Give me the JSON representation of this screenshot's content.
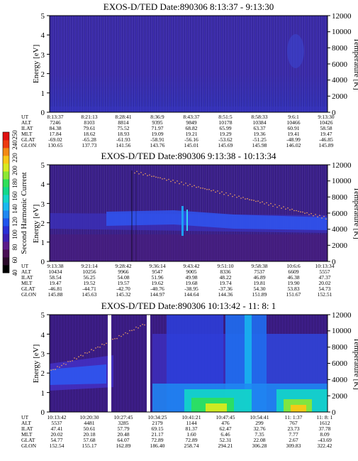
{
  "chart_data": {
    "type": "heatmap",
    "colorbar": {
      "label": "Second Harmonic Current",
      "ticks": [
        "40",
        "60",
        "80",
        "100",
        "120",
        "140",
        "160",
        "180",
        "200",
        "220",
        "240",
        "250"
      ],
      "colors": [
        "#000000",
        "#2b0a2a",
        "#4a0f55",
        "#5c1a8a",
        "#3b1fb3",
        "#2a2fd6",
        "#1f55ee",
        "#1e88f2",
        "#19b9f0",
        "#13d6c8",
        "#12d98a",
        "#2ee05a",
        "#8ce832",
        "#d7ea1f",
        "#f8c815",
        "#f48a12",
        "#ee3a10",
        "#e01010"
      ]
    },
    "panels": [
      {
        "title": "EXOS-D/TED   Date:890306  8:13:37 - 9:13:30",
        "ylabel": "Energy [eV]",
        "y2label": "Temperature [K]",
        "ylim": [
          0,
          5
        ],
        "y2lim": [
          0,
          12000
        ],
        "yticks": [
          "0",
          "1",
          "2",
          "3",
          "4",
          "5"
        ],
        "y2ticks": [
          "0",
          "2000",
          "4000",
          "6000",
          "8000",
          "10000",
          "12000"
        ],
        "ephemeris": [
          {
            "label": "UT",
            "values": [
              "8:13:37",
              "8:21:13",
              "8:28:41",
              "8:36:9",
              "8:43:37",
              "8:51:5",
              "8:58:33",
              "9:6:1",
              "9:13:30"
            ]
          },
          {
            "label": "ALT",
            "values": [
              "7246",
              "8103",
              "8814",
              "9395",
              "9849",
              "10178",
              "10384",
              "10466",
              "10426"
            ]
          },
          {
            "label": "ILAT",
            "values": [
              "84.38",
              "79.61",
              "75.52",
              "71.97",
              "68.82",
              "65.99",
              "63.37",
              "60.91",
              "58.58"
            ]
          },
          {
            "label": "MLT",
            "values": [
              "17.84",
              "18.62",
              "18.93",
              "19.09",
              "19.21",
              "19.29",
              "19.36",
              "19.41",
              "19.47"
            ]
          },
          {
            "label": "GLAT",
            "values": [
              "-69.02",
              "-65.28",
              "-61.93",
              "-58.91",
              "-56.16",
              "-53.62",
              "-51.25",
              "-48.99",
              "-46.85"
            ]
          },
          {
            "label": "GLON",
            "values": [
              "130.65",
              "137.73",
              "141.56",
              "143.76",
              "145.01",
              "145.69",
              "145.98",
              "146.02",
              "145.89"
            ]
          }
        ]
      },
      {
        "title": "EXOS-D/TED   Date:890306  9:13:38 - 10:13:34",
        "ylabel": "Energy [eV]",
        "y2label": "Temperature [K]",
        "ylim": [
          0,
          5
        ],
        "y2lim": [
          0,
          12000
        ],
        "yticks": [
          "0",
          "1",
          "2",
          "3",
          "4",
          "5"
        ],
        "y2ticks": [
          "0",
          "2000",
          "4000",
          "6000",
          "8000",
          "10000",
          "12000"
        ],
        "ephemeris": [
          {
            "label": "UT",
            "values": [
              "9:13:38",
              "9:21:14",
              "9:28:42",
              "9:36:14",
              "9:43:42",
              "9:51:10",
              "9:58:38",
              "10:6:6",
              "10:13:34"
            ]
          },
          {
            "label": "ALT",
            "values": [
              "10434",
              "10256",
              "9966",
              "9547",
              "9005",
              "8336",
              "7537",
              "6609",
              "5557"
            ]
          },
          {
            "label": "ILAT",
            "values": [
              "58.54",
              "56.25",
              "54.08",
              "51.96",
              "49.98",
              "48.22",
              "46.89",
              "46.38",
              "47.37"
            ]
          },
          {
            "label": "MLT",
            "values": [
              "19.47",
              "19.52",
              "19.57",
              "19.62",
              "19.68",
              "19.74",
              "19.81",
              "19.90",
              "20.02"
            ]
          },
          {
            "label": "GLAT",
            "values": [
              "-46.81",
              "-44.71",
              "-42.70",
              "-40.76",
              "-38.95",
              "-37.36",
              "54.30",
              "53.83",
              "54.73"
            ]
          },
          {
            "label": "GLON",
            "values": [
              "145.88",
              "145.63",
              "145.32",
              "144.97",
              "144.64",
              "144.36",
              "151.89",
              "151.67",
              "152.51"
            ]
          }
        ]
      },
      {
        "title": "EXOS-D/TED   Date:890306  10:13:42 - 11: 8: 1",
        "ylabel": "Energy [eV]",
        "y2label": "Temperature [K]",
        "ylim": [
          0,
          5
        ],
        "y2lim": [
          0,
          12000
        ],
        "yticks": [
          "0",
          "1",
          "2",
          "3",
          "4",
          "5"
        ],
        "y2ticks": [
          "0",
          "2000",
          "4000",
          "6000",
          "8000",
          "10000",
          "12000"
        ],
        "ephemeris": [
          {
            "label": "UT",
            "values": [
              "10:13:42",
              "10:20:30",
              "10:27:45",
              "10:34:25",
              "10:41:21",
              "10:47:45",
              "10:54:41",
              "11: 1:37",
              "11: 8: 1"
            ]
          },
          {
            "label": "ALT",
            "values": [
              "5537",
              "4481",
              "3285",
              "2179",
              "1144",
              "476",
              "299",
              "767",
              "1612"
            ]
          },
          {
            "label": "ILAT",
            "values": [
              "47.41",
              "50.61",
              "57.79",
              "69.15",
              "81.37",
              "62.47",
              "32.76",
              "23.73",
              "37.78"
            ]
          },
          {
            "label": "MLT",
            "values": [
              "20.02",
              "20.18",
              "20.48",
              "21.17",
              "1.60",
              "6.46",
              "7.35",
              "7.77",
              "8.09"
            ]
          },
          {
            "label": "GLAT",
            "values": [
              "54.77",
              "57.68",
              "64.07",
              "72.89",
              "72.89",
              "52.31",
              "22.08",
              "2.67",
              "-43.69"
            ]
          },
          {
            "label": "GLON",
            "values": [
              "152.54",
              "155.17",
              "162.89",
              "186.40",
              "258.74",
              "294.21",
              "306.28",
              "309.83",
              "322.42"
            ]
          }
        ]
      }
    ]
  }
}
